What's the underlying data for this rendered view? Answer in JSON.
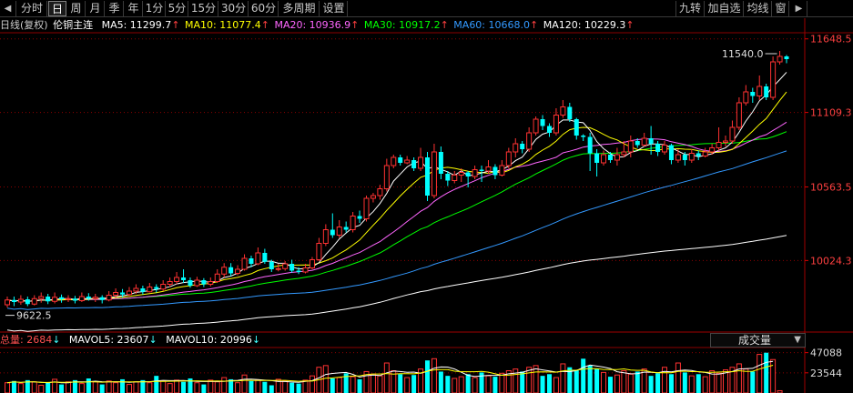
{
  "toolbar": {
    "left_arrow": "◀",
    "tabs": [
      {
        "label": "分时",
        "active": false
      },
      {
        "label": "日",
        "active": true
      },
      {
        "label": "周",
        "active": false
      },
      {
        "label": "月",
        "active": false
      },
      {
        "label": "季",
        "active": false
      },
      {
        "label": "年",
        "active": false
      },
      {
        "label": "1分",
        "active": false
      },
      {
        "label": "5分",
        "active": false
      },
      {
        "label": "15分",
        "active": false
      },
      {
        "label": "30分",
        "active": false
      },
      {
        "label": "60分",
        "active": false
      },
      {
        "label": "多周期",
        "active": false
      },
      {
        "label": "设置",
        "active": false
      }
    ],
    "right_buttons": [
      "九转",
      "加自选",
      "均线",
      "窗"
    ],
    "right_arrow": "▶"
  },
  "info": {
    "period": "日线(复权)",
    "symbol": "伦铜主连",
    "ma": [
      {
        "label": "MA5: 11299.7",
        "color": "#ffffff",
        "arrow": "↑"
      },
      {
        "label": "MA10: 11077.4",
        "color": "#ffff00",
        "arrow": "↑"
      },
      {
        "label": "MA20: 10936.9",
        "color": "#ff66ff",
        "arrow": "↑"
      },
      {
        "label": "MA30: 10917.2",
        "color": "#00ff00",
        "arrow": "↑"
      },
      {
        "label": "MA60: 10668.0",
        "color": "#3399ff",
        "arrow": "↑"
      },
      {
        "label": "MA120: 10229.3",
        "color": "#ffffff",
        "arrow": "↑"
      }
    ]
  },
  "volume_info": {
    "total": "总量: 2684",
    "total_arrow": "↓",
    "mavol5": "MAVOL5: 23607",
    "mavol5_arrow": "↓",
    "mavol10": "MAVOL10: 20996",
    "mavol10_arrow": "↓",
    "selector": "成交量",
    "selector_caret": "▼"
  },
  "price_axis": {
    "ticks": [
      "11648.5",
      "11109.3",
      "10563.5",
      "10024.3"
    ],
    "tick_values": [
      11648.5,
      11109.3,
      10563.5,
      10024.3
    ],
    "range": [
      9520,
      11680
    ]
  },
  "volume_axis": {
    "ticks": [
      "47088",
      "23544"
    ],
    "tick_values": [
      47088,
      23544
    ],
    "range": [
      0,
      52000
    ]
  },
  "annotations": {
    "high": "11540.0",
    "low": "9622.5"
  },
  "colors": {
    "up": "#ff3232",
    "down": "#00ffff",
    "ma5": "#ffffff",
    "ma10": "#ffff00",
    "ma20": "#ff66ff",
    "ma30": "#00ff00",
    "ma60": "#3399ff",
    "ma120": "#ffffff",
    "grid": "#8b0000"
  },
  "chart_data": {
    "type": "candlestick",
    "title": "伦铜主连 日线(复权)",
    "candles": [
      [
        9700,
        9735,
        9680,
        9760
      ],
      [
        9735,
        9720,
        9690,
        9760
      ],
      [
        9720,
        9740,
        9700,
        9770
      ],
      [
        9740,
        9705,
        9690,
        9760
      ],
      [
        9705,
        9745,
        9695,
        9770
      ],
      [
        9745,
        9760,
        9715,
        9790
      ],
      [
        9760,
        9725,
        9705,
        9780
      ],
      [
        9725,
        9755,
        9710,
        9790
      ],
      [
        9755,
        9740,
        9715,
        9775
      ],
      [
        9740,
        9745,
        9720,
        9770
      ],
      [
        9745,
        9730,
        9710,
        9765
      ],
      [
        9730,
        9760,
        9720,
        9790
      ],
      [
        9760,
        9745,
        9730,
        9785
      ],
      [
        9745,
        9755,
        9720,
        9780
      ],
      [
        9755,
        9735,
        9710,
        9770
      ],
      [
        9735,
        9770,
        9725,
        9800
      ],
      [
        9770,
        9790,
        9750,
        9820
      ],
      [
        9790,
        9775,
        9755,
        9815
      ],
      [
        9775,
        9800,
        9760,
        9830
      ],
      [
        9800,
        9820,
        9780,
        9850
      ],
      [
        9820,
        9795,
        9775,
        9840
      ],
      [
        9795,
        9830,
        9790,
        9860
      ],
      [
        9830,
        9815,
        9790,
        9850
      ],
      [
        9815,
        9850,
        9800,
        9880
      ],
      [
        9850,
        9870,
        9830,
        9900
      ],
      [
        9870,
        9900,
        9850,
        9940
      ],
      [
        9900,
        9880,
        9860,
        9960
      ],
      [
        9880,
        9840,
        9825,
        9900
      ],
      [
        9840,
        9880,
        9830,
        9905
      ],
      [
        9880,
        9850,
        9830,
        9895
      ],
      [
        9850,
        9870,
        9835,
        9900
      ],
      [
        9870,
        9925,
        9860,
        9960
      ],
      [
        9925,
        9975,
        9900,
        10005
      ],
      [
        9975,
        9930,
        9910,
        10005
      ],
      [
        9930,
        9960,
        9915,
        9990
      ],
      [
        9960,
        10040,
        9950,
        10070
      ],
      [
        10040,
        10000,
        9975,
        10060
      ],
      [
        10000,
        10080,
        9990,
        10120
      ],
      [
        10080,
        10015,
        10000,
        10110
      ],
      [
        10015,
        9960,
        9940,
        10030
      ],
      [
        9960,
        9965,
        9945,
        10000
      ],
      [
        9965,
        10000,
        9950,
        10020
      ],
      [
        10000,
        9950,
        9935,
        10030
      ],
      [
        9950,
        9940,
        9925,
        9975
      ],
      [
        9940,
        9970,
        9930,
        10000
      ],
      [
        9970,
        10030,
        9960,
        10050
      ],
      [
        10030,
        10150,
        10020,
        10190
      ],
      [
        10150,
        10250,
        10130,
        10290
      ],
      [
        10250,
        10210,
        10190,
        10370
      ],
      [
        10210,
        10270,
        10190,
        10320
      ],
      [
        10270,
        10250,
        10230,
        10310
      ],
      [
        10250,
        10350,
        10230,
        10380
      ],
      [
        10350,
        10330,
        10300,
        10390
      ],
      [
        10330,
        10480,
        10310,
        10500
      ],
      [
        10480,
        10500,
        10450,
        10520
      ],
      [
        10500,
        10550,
        10470,
        10580
      ],
      [
        10550,
        10720,
        10530,
        10770
      ],
      [
        10720,
        10780,
        10700,
        10800
      ],
      [
        10780,
        10740,
        10720,
        10800
      ],
      [
        10740,
        10760,
        10730,
        10790
      ],
      [
        10760,
        10700,
        10680,
        10780
      ],
      [
        10700,
        10780,
        10680,
        10850
      ],
      [
        10780,
        10500,
        10460,
        10820
      ],
      [
        10500,
        10820,
        10480,
        10880
      ],
      [
        10820,
        10660,
        10620,
        10860
      ],
      [
        10660,
        10610,
        10570,
        10680
      ],
      [
        10610,
        10650,
        10590,
        10680
      ],
      [
        10650,
        10670,
        10600,
        10700
      ],
      [
        10670,
        10640,
        10560,
        10680
      ],
      [
        10640,
        10690,
        10620,
        10720
      ],
      [
        10690,
        10680,
        10600,
        10720
      ],
      [
        10680,
        10710,
        10660,
        10760
      ],
      [
        10710,
        10650,
        10620,
        10730
      ],
      [
        10650,
        10720,
        10640,
        10760
      ],
      [
        10720,
        10820,
        10700,
        10850
      ],
      [
        10820,
        10880,
        10780,
        10920
      ],
      [
        10880,
        10840,
        10810,
        10900
      ],
      [
        10840,
        10960,
        10820,
        11000
      ],
      [
        10960,
        11060,
        10940,
        11080
      ],
      [
        11060,
        11010,
        10980,
        11090
      ],
      [
        11010,
        10960,
        10930,
        11030
      ],
      [
        10960,
        11090,
        10940,
        11140
      ],
      [
        11090,
        11150,
        11070,
        11200
      ],
      [
        11150,
        11060,
        11040,
        11180
      ],
      [
        11060,
        10940,
        10910,
        11070
      ],
      [
        10940,
        10930,
        10900,
        10950
      ],
      [
        10930,
        10810,
        10680,
        10960
      ],
      [
        10810,
        10740,
        10640,
        10840
      ],
      [
        10740,
        10800,
        10720,
        10830
      ],
      [
        10800,
        10760,
        10740,
        10820
      ],
      [
        10760,
        10800,
        10720,
        10850
      ],
      [
        10800,
        10820,
        10780,
        10900
      ],
      [
        10820,
        10900,
        10780,
        10940
      ],
      [
        10900,
        10870,
        10850,
        10920
      ],
      [
        10870,
        10920,
        10860,
        10960
      ],
      [
        10920,
        10880,
        10800,
        11010
      ],
      [
        10880,
        10820,
        10790,
        10900
      ],
      [
        10820,
        10870,
        10800,
        10900
      ],
      [
        10870,
        10760,
        10730,
        10880
      ],
      [
        10760,
        10800,
        10740,
        10840
      ],
      [
        10800,
        10760,
        10720,
        10820
      ],
      [
        10760,
        10810,
        10740,
        10840
      ],
      [
        10810,
        10790,
        10760,
        10830
      ],
      [
        10790,
        10820,
        10780,
        10850
      ],
      [
        10820,
        10850,
        10800,
        10880
      ],
      [
        10850,
        10890,
        10830,
        11000
      ],
      [
        10890,
        10900,
        10860,
        10940
      ],
      [
        10900,
        11000,
        10880,
        11050
      ],
      [
        11000,
        11180,
        10980,
        11220
      ],
      [
        11180,
        11260,
        11160,
        11310
      ],
      [
        11260,
        11230,
        11180,
        11290
      ],
      [
        11230,
        11300,
        11200,
        11380
      ],
      [
        11300,
        11220,
        11200,
        11320
      ],
      [
        11220,
        11480,
        11200,
        11520
      ],
      [
        11480,
        11520,
        11460,
        11560
      ],
      [
        11520,
        11500,
        11470,
        11530
      ]
    ],
    "volume": [
      12000,
      14000,
      11000,
      15000,
      13000,
      9000,
      12000,
      16000,
      10000,
      13000,
      15000,
      11000,
      17000,
      13000,
      10000,
      14000,
      12000,
      16000,
      10000,
      13000,
      15000,
      12000,
      20000,
      14000,
      11000,
      15000,
      13000,
      17000,
      12000,
      10000,
      15000,
      13000,
      18000,
      16000,
      12000,
      21000,
      14000,
      15000,
      13000,
      9000,
      16000,
      14000,
      12000,
      11000,
      15000,
      20000,
      30000,
      32000,
      17000,
      18000,
      23000,
      19000,
      16000,
      25000,
      22000,
      20000,
      35000,
      26000,
      22000,
      18000,
      21000,
      28000,
      38000,
      40000,
      25000,
      20000,
      17000,
      19000,
      22000,
      18000,
      24000,
      20000,
      19000,
      23000,
      26000,
      28000,
      25000,
      30000,
      32000,
      20000,
      22000,
      18000,
      34000,
      30000,
      27000,
      40000,
      32000,
      28000,
      24000,
      19000,
      21000,
      26000,
      22000,
      25000,
      28000,
      20000,
      23000,
      30000,
      22000,
      35000,
      24000,
      20000,
      22000,
      19000,
      26000,
      23000,
      27000,
      30000,
      34000,
      28000,
      25000,
      45000,
      47000,
      39000,
      2684
    ],
    "ma_current": {
      "MA5": 11299.7,
      "MA10": 11077.4,
      "MA20": 10936.9,
      "MA30": 10917.2,
      "MA60": 10668.0,
      "MA120": 10229.3
    },
    "volume_ma_current": {
      "MAVOL5": 23607,
      "MAVOL10": 20996
    },
    "high": 11540.0,
    "low": 9622.5
  }
}
